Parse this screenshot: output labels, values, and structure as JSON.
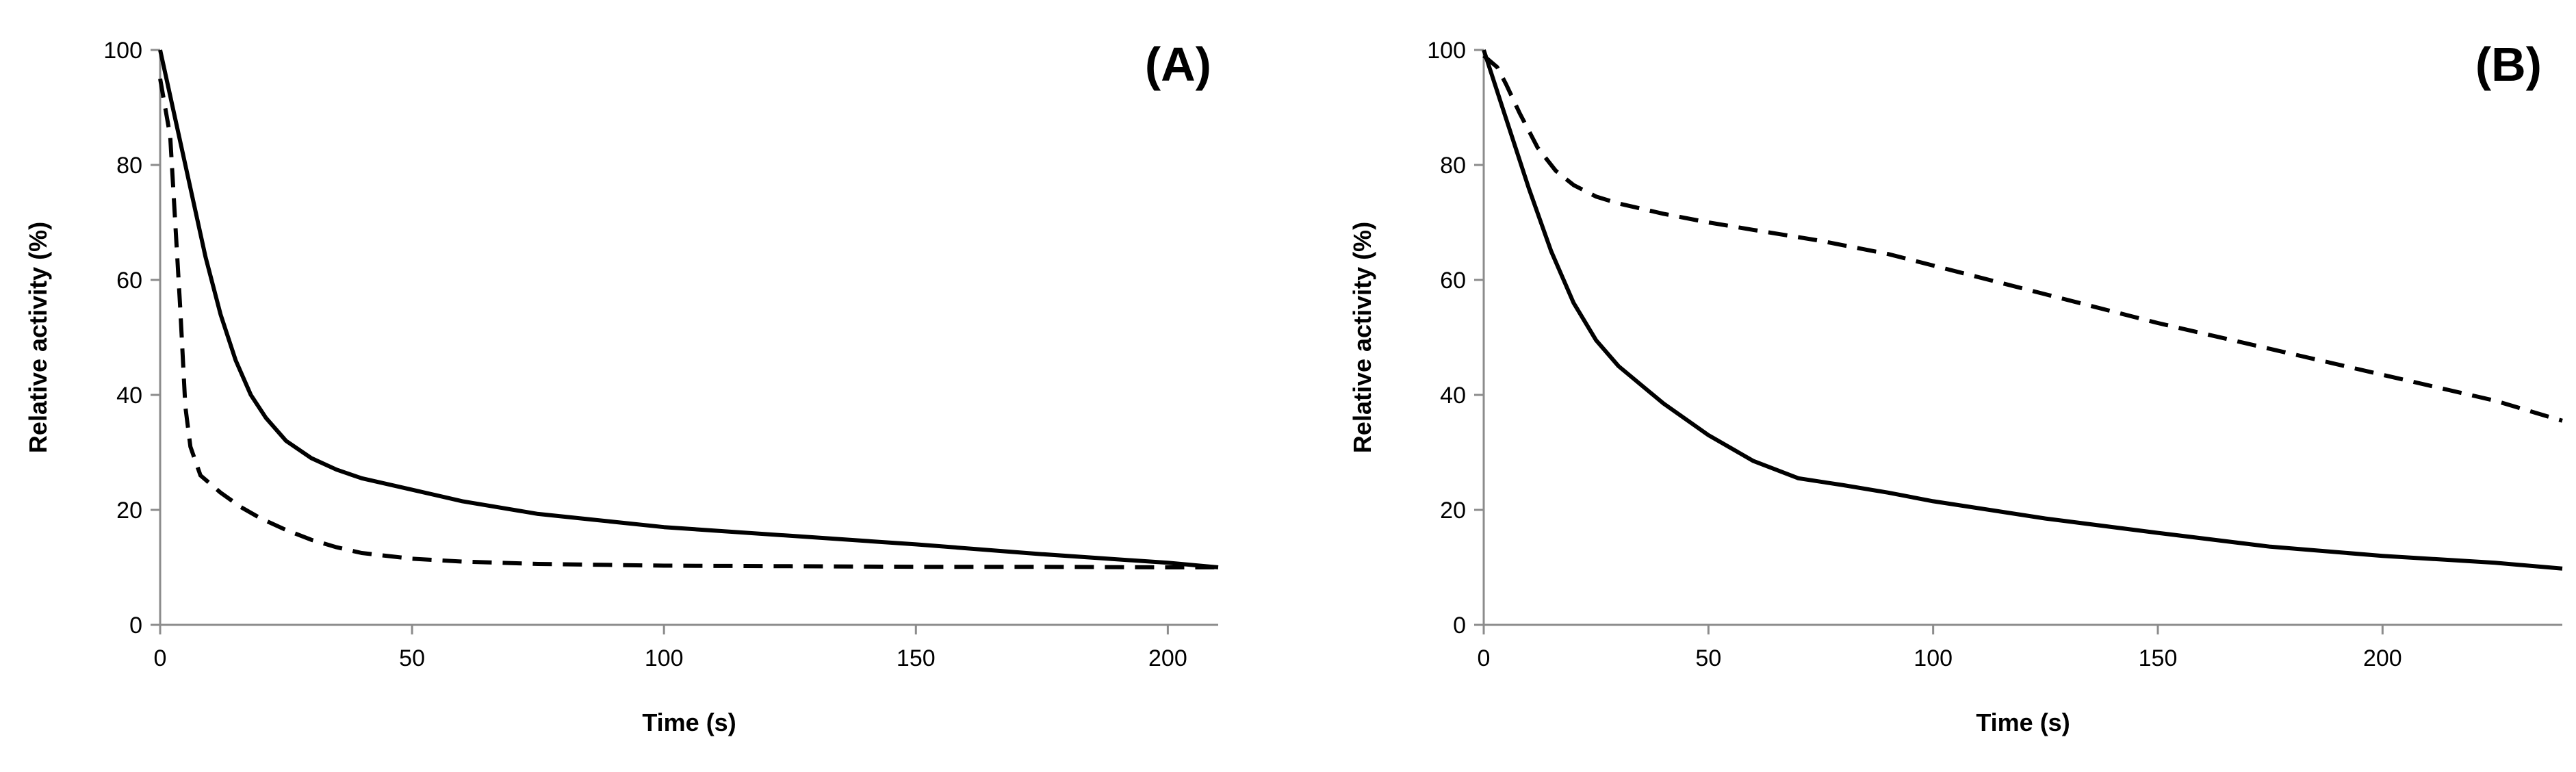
{
  "chart_data": [
    {
      "type": "line",
      "panel_label": "(A)",
      "xlabel": "Time (s)",
      "ylabel": "Relative activity (%)",
      "xlim": [
        0,
        210
      ],
      "ylim": [
        0,
        100
      ],
      "xticks": [
        0,
        50,
        100,
        150,
        200
      ],
      "yticks": [
        0,
        20,
        40,
        60,
        80,
        100
      ],
      "grid": false,
      "legend": "none",
      "series": [
        {
          "style": "solid",
          "color": "#000000",
          "x": [
            0,
            3,
            6,
            9,
            12,
            15,
            18,
            21,
            25,
            30,
            35,
            40,
            50,
            60,
            75,
            100,
            125,
            150,
            175,
            200,
            210
          ],
          "y": [
            100,
            88,
            76,
            64,
            54,
            46,
            40,
            36,
            32,
            29,
            27,
            25.5,
            23.5,
            21.5,
            19.3,
            17,
            15.5,
            14,
            12.3,
            10.8,
            10
          ]
        },
        {
          "style": "dashed",
          "color": "#000000",
          "x": [
            0,
            2,
            4,
            5,
            6,
            8,
            12,
            16,
            20,
            25,
            30,
            35,
            40,
            50,
            60,
            75,
            100,
            125,
            150,
            175,
            200,
            210
          ],
          "y": [
            95,
            85,
            55,
            38,
            31,
            26,
            23,
            20.5,
            18.5,
            16.5,
            14.8,
            13.5,
            12.5,
            11.5,
            11,
            10.6,
            10.3,
            10.2,
            10.1,
            10.1,
            10,
            10
          ]
        }
      ]
    },
    {
      "type": "line",
      "panel_label": "(B)",
      "xlabel": "Time (s)",
      "ylabel": "Relative activity (%)",
      "xlim": [
        0,
        240
      ],
      "ylim": [
        0,
        100
      ],
      "xticks": [
        0,
        50,
        100,
        150,
        200
      ],
      "yticks": [
        0,
        20,
        40,
        60,
        80,
        100
      ],
      "grid": false,
      "legend": "none",
      "series": [
        {
          "style": "solid",
          "color": "#000000",
          "x": [
            0,
            5,
            10,
            15,
            20,
            25,
            30,
            40,
            50,
            60,
            70,
            80,
            90,
            100,
            125,
            150,
            175,
            200,
            225,
            240
          ],
          "y": [
            100,
            88,
            76,
            65,
            56,
            49.5,
            45,
            38.5,
            33,
            28.5,
            25.5,
            24.3,
            23,
            21.5,
            18.5,
            16,
            13.6,
            12,
            10.8,
            9.8
          ]
        },
        {
          "style": "dashed",
          "color": "#000000",
          "x": [
            0,
            3,
            5,
            8,
            12,
            16,
            20,
            25,
            30,
            40,
            50,
            60,
            75,
            90,
            100,
            125,
            150,
            175,
            200,
            225,
            240
          ],
          "y": [
            99,
            97,
            94,
            89,
            83,
            79,
            76.5,
            74.5,
            73.3,
            71.5,
            70,
            68.7,
            66.8,
            64.5,
            62.5,
            57.5,
            52.5,
            48,
            43.5,
            39,
            35.5
          ]
        }
      ]
    }
  ]
}
